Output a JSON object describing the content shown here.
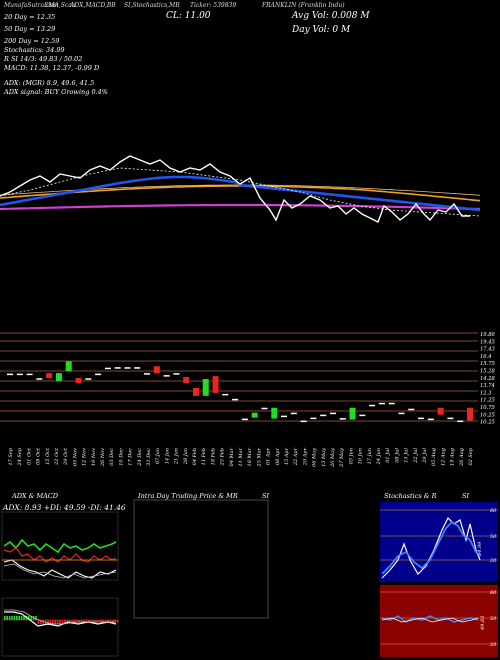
{
  "header": {
    "left": "MunafaSutra.com",
    "center_left": "EMA,Scan",
    "indicators": "ADX,MACD,BB",
    "stoch": "SI,Stochastics,MR",
    "ticker": "Ticker: 539839",
    "company": "FRANKLIN (Franklin Indu)"
  },
  "overlay": {
    "ema20": "20  Day  =  12.35",
    "ema50": "50  Day  =  13.29",
    "ema200": "200  Day  =  12.59",
    "stochastics": "Stochastics: 34.99",
    "si_line": "R                 SI 14/3: 49.83 / 50.02",
    "macd_line": "MACD: 11.38, 12.37, -0.99 D",
    "adx_line": "ADX:                      (MGR) 8.9, 49.6, 41.5",
    "adx_signal": "ADX  signal:                          BUY Growing 0.4%",
    "close": "CL: 11.00",
    "avg_vol": "Avg Vol: 0.008  M",
    "day_vol": "Day Vol: 0   M"
  },
  "colors": {
    "up": "#22dd22",
    "down": "#ee2222",
    "ema_blue": "#2255ee",
    "ema_orange": "#f2a020",
    "ema_magenta": "#d040d0",
    "grid": "#a0623a",
    "white": "#ffffff"
  },
  "price_levels": [
    "19.86",
    "19.45",
    "17.43",
    "16.4",
    "15.75",
    "15.28",
    "14.28",
    "13.74",
    "12.3",
    "11.25",
    "10.75",
    "10.25",
    "10.25"
  ],
  "date_labels": [
    "17 Sep",
    "24 Sep",
    "01 Oct",
    "08 Oct",
    "15 Oct",
    "22 Oct",
    "29 Oct",
    "05 Nov",
    "12 Nov",
    "19 Nov",
    "26 Nov",
    "03 Dec",
    "10 Dec",
    "17 Dec",
    "24 Dec",
    "31 Dec",
    "07 Jan",
    "14 Jan",
    "21 Jan",
    "28 Jan",
    "04 Feb",
    "11 Feb",
    "18 Feb",
    "25 Feb",
    "04 Mar",
    "11 Mar",
    "18 Mar",
    "25 Mar",
    "01 Apr",
    "08 Apr",
    "15 Apr",
    "22 Apr",
    "29 Apr",
    "06 May",
    "13 May",
    "20 May",
    "27 May",
    "03 Jun",
    "10 Jun",
    "17 Jun",
    "24 Jun",
    "01 Jul",
    "08 Jul",
    "15 Jul",
    "22 Jul",
    "29 Jul",
    "05 Aug",
    "12 Aug",
    "19 Aug",
    "26 Aug",
    "02 Sep"
  ],
  "panels": {
    "adx_title": "ADX  & MACD",
    "adx_values": "ADX: 8.93  +DI: 49.59  -DI: 41.46",
    "intraday_title": "Intra Day Trading Price  & MR",
    "intraday_si": "SI",
    "stoch_title": "Stochastics & R",
    "stoch_si": "SI",
    "stoch_levels": [
      "80",
      "50",
      "20"
    ],
    "si_levels": [
      "80",
      "50",
      "20"
    ],
    "stoch_value": "34.99",
    "si_value": "49.83"
  },
  "chart_data": {
    "type": "candlestick",
    "title": "FRANKLIN (Franklin Indu)",
    "candles": [
      {
        "o": 15.75,
        "c": 15.75
      },
      {
        "o": 15.75,
        "c": 15.75
      },
      {
        "o": 15.75,
        "c": 15.75
      },
      {
        "o": 15.28,
        "c": 15.28
      },
      {
        "o": 15.8,
        "c": 15.28
      },
      {
        "o": 15.0,
        "c": 15.8
      },
      {
        "o": 16.0,
        "c": 17.0
      },
      {
        "o": 15.3,
        "c": 14.8
      },
      {
        "o": 15.28,
        "c": 15.28
      },
      {
        "o": 15.75,
        "c": 15.75
      },
      {
        "o": 16.35,
        "c": 16.35
      },
      {
        "o": 16.4,
        "c": 16.4
      },
      {
        "o": 16.4,
        "c": 16.4
      },
      {
        "o": 16.4,
        "c": 16.4
      },
      {
        "o": 15.8,
        "c": 15.8
      },
      {
        "o": 16.5,
        "c": 15.8
      },
      {
        "o": 15.6,
        "c": 15.6
      },
      {
        "o": 15.8,
        "c": 15.8
      },
      {
        "o": 15.4,
        "c": 14.8
      },
      {
        "o": 14.3,
        "c": 13.5
      },
      {
        "o": 13.5,
        "c": 15.2
      },
      {
        "o": 15.5,
        "c": 13.8
      },
      {
        "o": 13.7,
        "c": 13.7
      },
      {
        "o": 13.2,
        "c": 13.2
      },
      {
        "o": 11.2,
        "c": 11.2
      },
      {
        "o": 11.3,
        "c": 11.8
      },
      {
        "o": 12.3,
        "c": 12.3
      },
      {
        "o": 11.2,
        "c": 12.3
      },
      {
        "o": 11.5,
        "c": 11.5
      },
      {
        "o": 11.8,
        "c": 11.8
      },
      {
        "o": 11.0,
        "c": 11.0
      },
      {
        "o": 11.3,
        "c": 11.3
      },
      {
        "o": 11.6,
        "c": 11.6
      },
      {
        "o": 11.8,
        "c": 11.8
      },
      {
        "o": 11.25,
        "c": 11.25
      },
      {
        "o": 11.1,
        "c": 12.3
      },
      {
        "o": 11.6,
        "c": 11.6
      },
      {
        "o": 12.6,
        "c": 12.6
      },
      {
        "o": 12.8,
        "c": 12.8
      },
      {
        "o": 12.8,
        "c": 12.8
      },
      {
        "o": 11.8,
        "c": 11.8
      },
      {
        "o": 12.2,
        "c": 12.2
      },
      {
        "o": 11.3,
        "c": 11.3
      },
      {
        "o": 11.2,
        "c": 11.2
      },
      {
        "o": 12.3,
        "c": 11.6
      },
      {
        "o": 11.3,
        "c": 11.3
      },
      {
        "o": 11.0,
        "c": 11.0
      },
      {
        "o": 12.3,
        "c": 11.0
      }
    ],
    "ylim": [
      10.25,
      19.86
    ]
  }
}
